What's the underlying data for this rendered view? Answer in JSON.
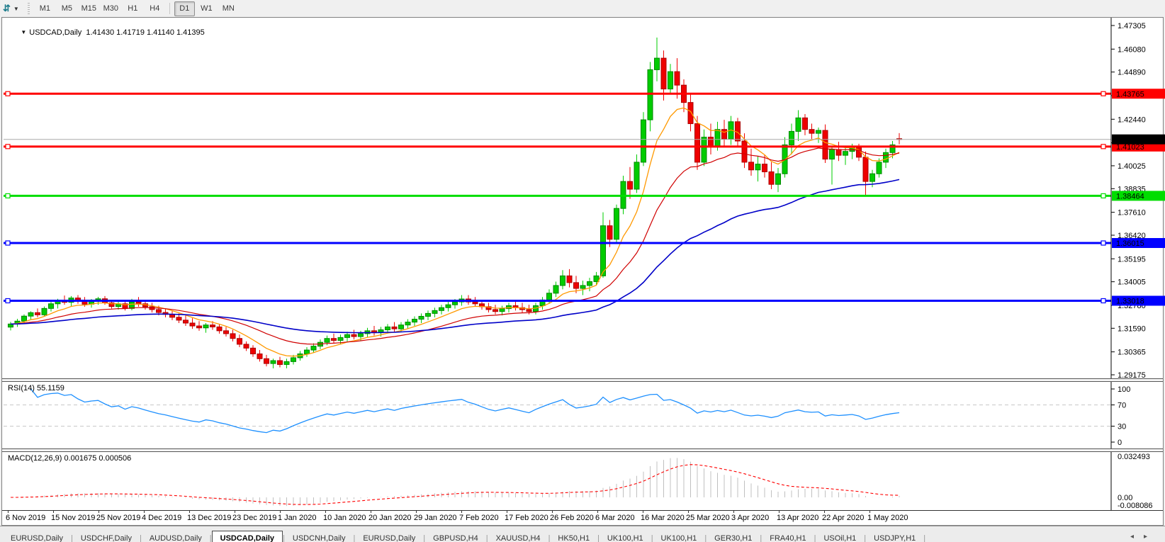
{
  "toolbar": {
    "icon_glyph": "⇵",
    "caret_glyph": "▼",
    "timeframes": [
      "M1",
      "M5",
      "M15",
      "M30",
      "H1",
      "H4",
      "D1",
      "W1",
      "MN"
    ],
    "selected_timeframe": "D1"
  },
  "chart": {
    "dropdown_glyph": "▼",
    "title_symbol": "USDCAD,Daily",
    "ohlc_line": "1.41430 1.41719 1.41140 1.41395",
    "price_axis_ticks": [
      "1.47305",
      "1.46080",
      "1.44890",
      "1.43665",
      "1.42440",
      "1.41215",
      "1.40025",
      "1.38835",
      "1.37610",
      "1.36420",
      "1.35195",
      "1.34005",
      "1.32780",
      "1.31590",
      "1.30365",
      "1.29175"
    ],
    "price_labels": [
      {
        "text": "1.43765",
        "price": 1.43765,
        "bg": "#ff0000",
        "fg": "#ffffff"
      },
      {
        "text": "1.41023",
        "price": 1.41023,
        "bg": "#ff0000",
        "fg": "#ffffff"
      },
      {
        "text": "1.38464",
        "price": 1.38464,
        "bg": "#00dd00",
        "fg": "#000000"
      },
      {
        "text": "1.36015",
        "price": 1.36015,
        "bg": "#0000ff",
        "fg": "#ffffff"
      },
      {
        "text": "1.33018",
        "price": 1.33018,
        "bg": "#0000ff",
        "fg": "#ffffff"
      },
      {
        "text": "1.41395",
        "price": 1.41395,
        "bg": "#000000",
        "fg": "#ffffff"
      }
    ],
    "hlines": [
      {
        "price": 1.43765,
        "color": "#ff0000",
        "width": 3,
        "marks": true
      },
      {
        "price": 1.41023,
        "color": "#ff0000",
        "width": 3,
        "marks": true
      },
      {
        "price": 1.38464,
        "color": "#00dd00",
        "width": 3,
        "marks": true
      },
      {
        "price": 1.36015,
        "color": "#0000ff",
        "width": 3,
        "marks": true
      },
      {
        "price": 1.33018,
        "color": "#0000ff",
        "width": 3,
        "marks": true
      },
      {
        "price": 1.41395,
        "color": "#aaaaaa",
        "width": 1,
        "marks": false
      }
    ],
    "date_labels": [
      "6 Nov 2019",
      "15 Nov 2019",
      "25 Nov 2019",
      "4 Dec 2019",
      "13 Dec 2019",
      "23 Dec 2019",
      "1 Jan 2020",
      "10 Jan 2020",
      "20 Jan 2020",
      "29 Jan 2020",
      "7 Feb 2020",
      "17 Feb 2020",
      "26 Feb 2020",
      "6 Mar 2020",
      "16 Mar 2020",
      "25 Mar 2020",
      "3 Apr 2020",
      "13 Apr 2020",
      "22 Apr 2020",
      "1 May 2020"
    ]
  },
  "rsi": {
    "label": "RSI(14) 55.1159",
    "scale": [
      "100",
      "70",
      "30",
      "0"
    ],
    "levels": [
      70,
      30
    ]
  },
  "macd": {
    "label": "MACD(12,26,9) 0.001675 0.000506",
    "scale_max": "0.032493",
    "scale_zero": "0.00",
    "scale_min": "-0.008086"
  },
  "tabs": {
    "left_arrow": "◂",
    "right_arrow": "▸",
    "items": [
      {
        "label": "EURUSD,Daily",
        "active": false
      },
      {
        "label": "USDCHF,Daily",
        "active": false
      },
      {
        "label": "AUDUSD,Daily",
        "active": false
      },
      {
        "label": "USDCAD,Daily",
        "active": true
      },
      {
        "label": "USDCNH,Daily",
        "active": false
      },
      {
        "label": "EURUSD,Daily",
        "active": false
      },
      {
        "label": "GBPUSD,H4",
        "active": false
      },
      {
        "label": "XAUUSD,H4",
        "active": false
      },
      {
        "label": "HK50,H1",
        "active": false
      },
      {
        "label": "UK100,H1",
        "active": false
      },
      {
        "label": "UK100,H1",
        "active": false
      },
      {
        "label": "GER30,H1",
        "active": false
      },
      {
        "label": "FRA40,H1",
        "active": false
      },
      {
        "label": "USOil,H1",
        "active": false
      },
      {
        "label": "USDJPY,H1",
        "active": false
      }
    ]
  },
  "chart_data": {
    "type": "candlestick",
    "symbol": "USDCAD",
    "timeframe": "Daily",
    "visible_range": {
      "first_date": "6 Nov 2019",
      "last_date": "8 May 2020",
      "price_min": 1.29175,
      "price_max": 1.47305
    },
    "current_bar": {
      "open": 1.4143,
      "high": 1.41719,
      "low": 1.4114,
      "close": 1.41395
    },
    "horizontal_levels": [
      1.43765,
      1.41023,
      1.38464,
      1.36015,
      1.33018
    ],
    "current_price": 1.41395,
    "overlays": [
      {
        "name": "ma-fast",
        "color": "#ff9900",
        "period": 8
      },
      {
        "name": "ma-medium",
        "color": "#d00000",
        "period": 21
      },
      {
        "name": "ma-slow",
        "color": "#0000c8",
        "period": 55
      }
    ],
    "indicators": [
      {
        "name": "RSI",
        "period": 14,
        "value": 55.1159,
        "range": [
          0,
          100
        ],
        "levels": [
          70,
          30
        ]
      },
      {
        "name": "MACD",
        "fast": 12,
        "slow": 26,
        "signal": 9,
        "value": 0.001675,
        "signal_value": 0.000506,
        "range": [
          -0.008086,
          0.032493
        ]
      }
    ],
    "candles": [
      [
        1.3165,
        1.3192,
        1.3148,
        1.3181
      ],
      [
        1.3181,
        1.3208,
        1.3166,
        1.3196
      ],
      [
        1.3196,
        1.3231,
        1.3186,
        1.3222
      ],
      [
        1.3222,
        1.3247,
        1.3202,
        1.324
      ],
      [
        1.324,
        1.3262,
        1.3216,
        1.3229
      ],
      [
        1.3229,
        1.3272,
        1.3221,
        1.3262
      ],
      [
        1.3262,
        1.3297,
        1.3246,
        1.3286
      ],
      [
        1.3286,
        1.3312,
        1.3262,
        1.3301
      ],
      [
        1.3301,
        1.3329,
        1.3281,
        1.3294
      ],
      [
        1.3294,
        1.3326,
        1.3271,
        1.3316
      ],
      [
        1.3316,
        1.3331,
        1.3286,
        1.3299
      ],
      [
        1.3299,
        1.3321,
        1.3271,
        1.3284
      ],
      [
        1.3284,
        1.3311,
        1.3266,
        1.3301
      ],
      [
        1.3301,
        1.3322,
        1.3281,
        1.3312
      ],
      [
        1.3312,
        1.3326,
        1.3281,
        1.3291
      ],
      [
        1.3291,
        1.3306,
        1.3261,
        1.3272
      ],
      [
        1.3272,
        1.3296,
        1.3256,
        1.3286
      ],
      [
        1.3286,
        1.3301,
        1.3251,
        1.3262
      ],
      [
        1.3262,
        1.3312,
        1.3252,
        1.3296
      ],
      [
        1.3296,
        1.3321,
        1.3271,
        1.3286
      ],
      [
        1.3286,
        1.3306,
        1.3256,
        1.3271
      ],
      [
        1.3271,
        1.3291,
        1.3241,
        1.3256
      ],
      [
        1.3256,
        1.3276,
        1.3226,
        1.3241
      ],
      [
        1.3241,
        1.3261,
        1.3216,
        1.3231
      ],
      [
        1.3231,
        1.3251,
        1.3201,
        1.3216
      ],
      [
        1.3216,
        1.3236,
        1.3186,
        1.3201
      ],
      [
        1.3201,
        1.3226,
        1.3171,
        1.3186
      ],
      [
        1.3186,
        1.3211,
        1.3156,
        1.3171
      ],
      [
        1.3171,
        1.3196,
        1.3146,
        1.3161
      ],
      [
        1.3161,
        1.3186,
        1.3136,
        1.3176
      ],
      [
        1.3176,
        1.3196,
        1.3151,
        1.3166
      ],
      [
        1.3166,
        1.3181,
        1.3131,
        1.3146
      ],
      [
        1.3146,
        1.3166,
        1.3116,
        1.3131
      ],
      [
        1.3131,
        1.3151,
        1.3091,
        1.3106
      ],
      [
        1.3106,
        1.3126,
        1.3061,
        1.3076
      ],
      [
        1.3076,
        1.3091,
        1.3041,
        1.3056
      ],
      [
        1.3056,
        1.3071,
        1.3011,
        1.3026
      ],
      [
        1.3026,
        1.3046,
        1.2986,
        1.3001
      ],
      [
        1.3001,
        1.3021,
        1.2961,
        1.2976
      ],
      [
        1.2976,
        1.3001,
        1.2951,
        1.2991
      ],
      [
        1.2991,
        1.3011,
        1.2956,
        1.2971
      ],
      [
        1.2971,
        1.3001,
        1.2951,
        1.2986
      ],
      [
        1.2986,
        1.3021,
        1.2971,
        1.3006
      ],
      [
        1.3006,
        1.3041,
        1.2991,
        1.3026
      ],
      [
        1.3026,
        1.3061,
        1.3011,
        1.3046
      ],
      [
        1.3046,
        1.3081,
        1.3031,
        1.3066
      ],
      [
        1.3066,
        1.3101,
        1.3051,
        1.3086
      ],
      [
        1.3086,
        1.3121,
        1.3071,
        1.3106
      ],
      [
        1.3106,
        1.3131,
        1.3081,
        1.3096
      ],
      [
        1.3096,
        1.3126,
        1.3076,
        1.3111
      ],
      [
        1.3111,
        1.3141,
        1.3091,
        1.3126
      ],
      [
        1.3126,
        1.3151,
        1.3101,
        1.3116
      ],
      [
        1.3116,
        1.3146,
        1.3096,
        1.3131
      ],
      [
        1.3131,
        1.3161,
        1.3111,
        1.3146
      ],
      [
        1.3146,
        1.3171,
        1.3121,
        1.3136
      ],
      [
        1.3136,
        1.3166,
        1.3116,
        1.3151
      ],
      [
        1.3151,
        1.3181,
        1.3131,
        1.3166
      ],
      [
        1.3166,
        1.3191,
        1.3141,
        1.3156
      ],
      [
        1.3156,
        1.3191,
        1.3141,
        1.3176
      ],
      [
        1.3176,
        1.3206,
        1.3156,
        1.3191
      ],
      [
        1.3191,
        1.3221,
        1.3171,
        1.3206
      ],
      [
        1.3206,
        1.3236,
        1.3186,
        1.3221
      ],
      [
        1.3221,
        1.3251,
        1.3201,
        1.3236
      ],
      [
        1.3236,
        1.3266,
        1.3216,
        1.3251
      ],
      [
        1.3251,
        1.3281,
        1.3231,
        1.3266
      ],
      [
        1.3266,
        1.3296,
        1.3246,
        1.3281
      ],
      [
        1.3281,
        1.3311,
        1.3261,
        1.3296
      ],
      [
        1.3296,
        1.3331,
        1.3276,
        1.3311
      ],
      [
        1.3311,
        1.3331,
        1.3281,
        1.3296
      ],
      [
        1.3296,
        1.3321,
        1.3271,
        1.3286
      ],
      [
        1.3286,
        1.3306,
        1.3256,
        1.3271
      ],
      [
        1.3271,
        1.3291,
        1.3241,
        1.3256
      ],
      [
        1.3256,
        1.3281,
        1.3231,
        1.3246
      ],
      [
        1.3246,
        1.3276,
        1.3226,
        1.3261
      ],
      [
        1.3261,
        1.3291,
        1.3241,
        1.3276
      ],
      [
        1.3276,
        1.3301,
        1.3251,
        1.3266
      ],
      [
        1.3266,
        1.3291,
        1.3241,
        1.3256
      ],
      [
        1.3256,
        1.3281,
        1.3231,
        1.3246
      ],
      [
        1.3246,
        1.3291,
        1.3231,
        1.3276
      ],
      [
        1.3276,
        1.3321,
        1.3256,
        1.3306
      ],
      [
        1.3306,
        1.3361,
        1.3286,
        1.3341
      ],
      [
        1.3341,
        1.3401,
        1.3321,
        1.3381
      ],
      [
        1.3381,
        1.3461,
        1.3361,
        1.3431
      ],
      [
        1.3431,
        1.3466,
        1.3371,
        1.3396
      ],
      [
        1.3396,
        1.3431,
        1.3341,
        1.3366
      ],
      [
        1.3366,
        1.3406,
        1.3331,
        1.3381
      ],
      [
        1.3381,
        1.3421,
        1.3351,
        1.3401
      ],
      [
        1.3401,
        1.3451,
        1.3381,
        1.3431
      ],
      [
        1.3431,
        1.3761,
        1.3421,
        1.3691
      ],
      [
        1.3691,
        1.3721,
        1.3581,
        1.3621
      ],
      [
        1.3621,
        1.3801,
        1.3601,
        1.3781
      ],
      [
        1.3781,
        1.3951,
        1.3751,
        1.3921
      ],
      [
        1.3921,
        1.3996,
        1.3831,
        1.3881
      ],
      [
        1.3881,
        1.4061,
        1.3861,
        1.4021
      ],
      [
        1.4021,
        1.4281,
        1.4001,
        1.4241
      ],
      [
        1.4241,
        1.4541,
        1.4181,
        1.4501
      ],
      [
        1.4501,
        1.4668,
        1.4441,
        1.4561
      ],
      [
        1.4561,
        1.4601,
        1.4341,
        1.4401
      ],
      [
        1.4401,
        1.4531,
        1.4381,
        1.4491
      ],
      [
        1.4491,
        1.4561,
        1.4351,
        1.4421
      ],
      [
        1.4421,
        1.4451,
        1.4281,
        1.4331
      ],
      [
        1.4331,
        1.4381,
        1.4181,
        1.4221
      ],
      [
        1.4221,
        1.4261,
        1.3981,
        1.4021
      ],
      [
        1.4021,
        1.4191,
        1.4001,
        1.4151
      ],
      [
        1.4151,
        1.4221,
        1.4061,
        1.4101
      ],
      [
        1.4101,
        1.4231,
        1.4081,
        1.4191
      ],
      [
        1.4191,
        1.4241,
        1.4101,
        1.4141
      ],
      [
        1.4141,
        1.4261,
        1.4111,
        1.4231
      ],
      [
        1.4231,
        1.4251,
        1.4101,
        1.4131
      ],
      [
        1.4131,
        1.4171,
        1.3991,
        1.4021
      ],
      [
        1.4021,
        1.4091,
        1.3951,
        1.3981
      ],
      [
        1.3981,
        1.4051,
        1.3921,
        1.4011
      ],
      [
        1.4011,
        1.4061,
        1.3941,
        1.3971
      ],
      [
        1.3971,
        1.4021,
        1.3881,
        1.3906
      ],
      [
        1.3906,
        1.3991,
        1.3866,
        1.3961
      ],
      [
        1.3961,
        1.4151,
        1.3941,
        1.4111
      ],
      [
        1.4111,
        1.4221,
        1.4061,
        1.4181
      ],
      [
        1.4181,
        1.4291,
        1.4131,
        1.4251
      ],
      [
        1.4251,
        1.4271,
        1.4161,
        1.4191
      ],
      [
        1.4191,
        1.4221,
        1.4141,
        1.4171
      ],
      [
        1.4171,
        1.4201,
        1.4121,
        1.4186
      ],
      [
        1.4186,
        1.4217,
        1.4017,
        1.4037
      ],
      [
        1.4037,
        1.4107,
        1.3905,
        1.4087
      ],
      [
        1.4087,
        1.4127,
        1.4027,
        1.4057
      ],
      [
        1.4057,
        1.4097,
        1.4007,
        1.4077
      ],
      [
        1.4077,
        1.4117,
        1.4037,
        1.4097
      ],
      [
        1.4097,
        1.4117,
        1.4027,
        1.4047
      ],
      [
        1.4047,
        1.4077,
        1.3851,
        1.3921
      ],
      [
        1.3921,
        1.3981,
        1.3891,
        1.3961
      ],
      [
        1.3961,
        1.4041,
        1.3941,
        1.4021
      ],
      [
        1.4021,
        1.4091,
        1.3991,
        1.4071
      ],
      [
        1.4071,
        1.4131,
        1.4041,
        1.4111
      ],
      [
        1.4143,
        1.41719,
        1.4114,
        1.41395
      ]
    ],
    "colors": {
      "candle_up": "#00cc00",
      "candle_up_border": "#008800",
      "candle_down": "#ee0000",
      "candle_down_border": "#aa0000",
      "ma_fast": "#ff9900",
      "ma_medium": "#d00000",
      "ma_slow": "#0000c8",
      "rsi_line": "#1e90ff",
      "rsi_levels": "#c8c8c8",
      "macd_hist": "#c0c0c0",
      "macd_signal": "#ff0000",
      "level_red": "#ff0000",
      "level_green": "#00dd00",
      "level_blue": "#0000ff",
      "current_price_line": "#aaaaaa"
    }
  }
}
